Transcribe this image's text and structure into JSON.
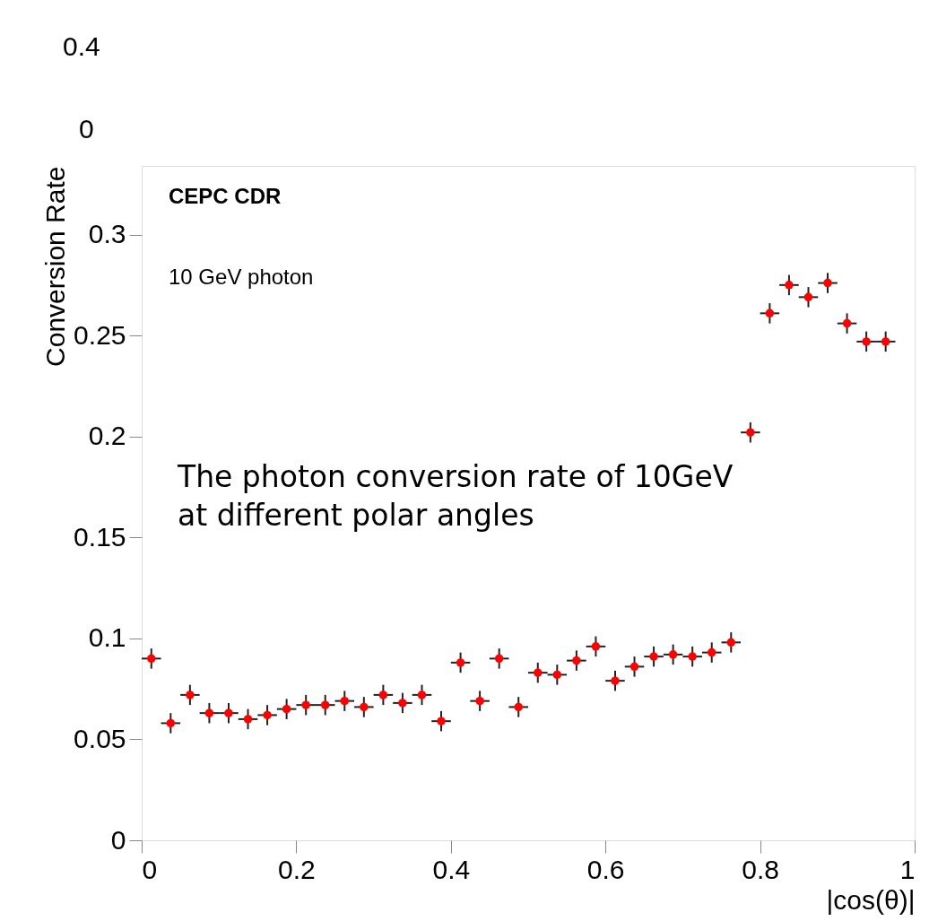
{
  "chart_data": {
    "type": "scatter",
    "xlabel": "|cos(θ)|",
    "ylabel": "Conversion Rate",
    "x": [
      0.0125,
      0.0375,
      0.0625,
      0.0875,
      0.1125,
      0.1375,
      0.1625,
      0.1875,
      0.2125,
      0.2375,
      0.2625,
      0.2875,
      0.3125,
      0.3375,
      0.3625,
      0.3875,
      0.4125,
      0.4375,
      0.4625,
      0.4875,
      0.5125,
      0.5375,
      0.5625,
      0.5875,
      0.6125,
      0.6375,
      0.6625,
      0.6875,
      0.7125,
      0.7375,
      0.7625,
      0.7875,
      0.8125,
      0.8375,
      0.8625,
      0.8875,
      0.9125,
      0.9375,
      0.9625
    ],
    "values": [
      0.09,
      0.058,
      0.072,
      0.063,
      0.063,
      0.06,
      0.062,
      0.065,
      0.067,
      0.067,
      0.069,
      0.066,
      0.072,
      0.068,
      0.072,
      0.059,
      0.088,
      0.069,
      0.09,
      0.066,
      0.083,
      0.082,
      0.089,
      0.096,
      0.079,
      0.086,
      0.091,
      0.092,
      0.091,
      0.093,
      0.098,
      0.202,
      0.261,
      0.275,
      0.269,
      0.276,
      0.256,
      0.247,
      0.247
    ],
    "errors": [
      0.005,
      0.005,
      0.005,
      0.005,
      0.005,
      0.005,
      0.005,
      0.005,
      0.005,
      0.005,
      0.005,
      0.005,
      0.005,
      0.005,
      0.005,
      0.005,
      0.005,
      0.005,
      0.005,
      0.005,
      0.005,
      0.005,
      0.005,
      0.005,
      0.005,
      0.005,
      0.005,
      0.005,
      0.005,
      0.005,
      0.005,
      0.005,
      0.005,
      0.005,
      0.005,
      0.005,
      0.005,
      0.005,
      0.005
    ],
    "xerrors": [
      0.0125,
      0.0125,
      0.0125,
      0.0125,
      0.0125,
      0.0125,
      0.0125,
      0.0125,
      0.0125,
      0.0125,
      0.0125,
      0.0125,
      0.0125,
      0.0125,
      0.0125,
      0.0125,
      0.0125,
      0.0125,
      0.0125,
      0.0125,
      0.0125,
      0.0125,
      0.0125,
      0.0125,
      0.0125,
      0.0125,
      0.0125,
      0.0125,
      0.0125,
      0.0125,
      0.0125,
      0.0125,
      0.0125,
      0.0125,
      0.0125,
      0.0125,
      0.0125,
      0.0125,
      0.0125
    ],
    "color": "#ff0000",
    "marker": "circle",
    "xlim": [
      0,
      1
    ],
    "xticks": [
      0,
      0.2,
      0.4,
      0.6,
      0.8,
      1
    ],
    "ylim": [
      0,
      0.334
    ],
    "yticks": [
      0,
      0.05,
      0.1,
      0.15,
      0.2,
      0.25,
      0.3
    ],
    "grid": false,
    "annotations": [
      "CEPC CDR",
      "10 GeV photon",
      "The photon conversion rate of 10GeV at different polar angles",
      "0.4",
      "0"
    ]
  }
}
